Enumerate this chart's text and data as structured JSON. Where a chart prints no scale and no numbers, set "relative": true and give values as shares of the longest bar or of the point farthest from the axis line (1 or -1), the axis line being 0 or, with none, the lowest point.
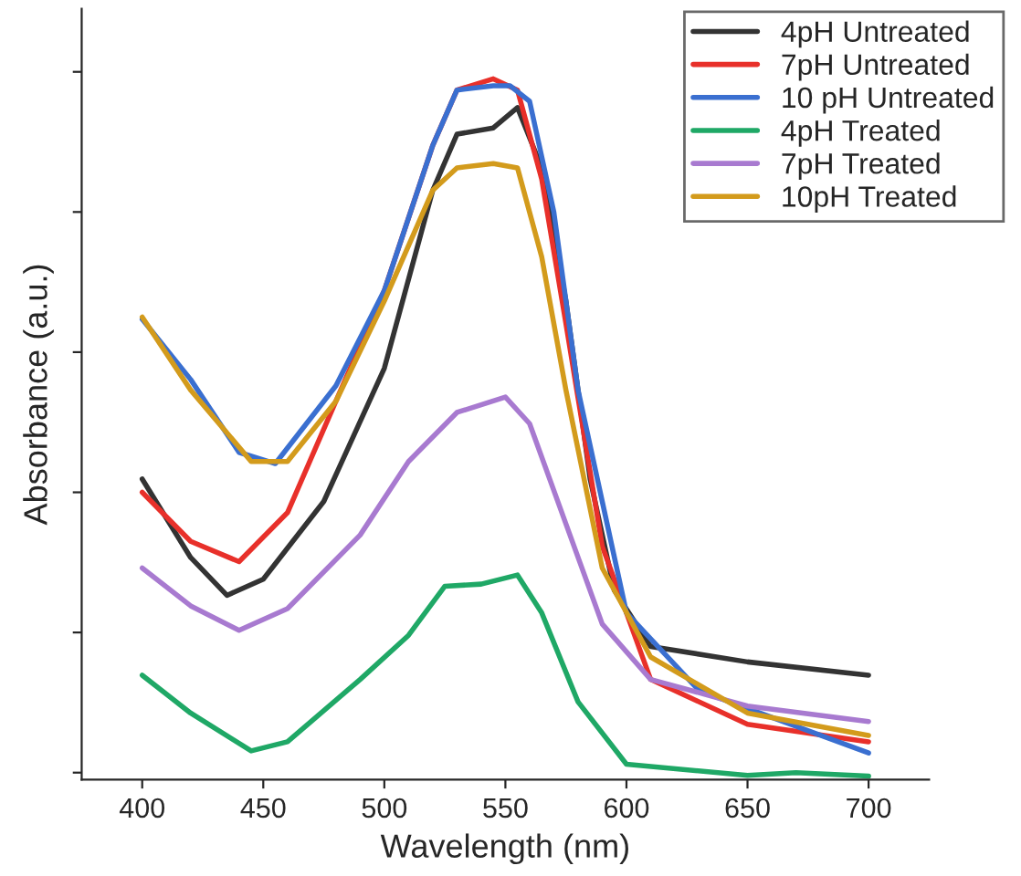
{
  "chart_data": {
    "type": "line",
    "relative": true,
    "xlabel": "Wavelength (nm)",
    "ylabel": "Absorbance (a.u.)",
    "xlim": [
      375,
      725
    ],
    "xticks": [
      400,
      450,
      500,
      550,
      600,
      650,
      700
    ],
    "grid": false,
    "legend": "top right",
    "tick_labels": "x",
    "line_style": "solid",
    "series": [
      {
        "name": "4pH Untreated",
        "color": "#333333",
        "x": [
          400,
          420,
          435,
          450,
          475,
          500,
          520,
          530,
          545,
          555,
          565,
          575,
          585,
          595,
          610,
          650,
          700
        ],
        "values": [
          0.429,
          0.317,
          0.263,
          0.286,
          0.397,
          0.587,
          0.841,
          0.921,
          0.93,
          0.959,
          0.873,
          0.683,
          0.429,
          0.27,
          0.19,
          0.168,
          0.149
        ]
      },
      {
        "name": "7pH Untreated",
        "color": "#e8302a",
        "x": [
          400,
          420,
          440,
          460,
          480,
          500,
          520,
          530,
          545,
          555,
          565,
          575,
          590,
          610,
          650,
          700
        ],
        "values": [
          0.41,
          0.34,
          0.311,
          0.381,
          0.54,
          0.698,
          0.905,
          0.984,
          1.0,
          0.984,
          0.857,
          0.651,
          0.333,
          0.143,
          0.079,
          0.054
        ]
      },
      {
        "name": "10 pH Untreated",
        "color": "#3a6fd0",
        "x": [
          400,
          420,
          440,
          455,
          480,
          500,
          520,
          530,
          545,
          552,
          560,
          570,
          580,
          600,
          630,
          700
        ],
        "values": [
          0.657,
          0.571,
          0.467,
          0.451,
          0.562,
          0.698,
          0.905,
          0.984,
          0.99,
          0.99,
          0.968,
          0.81,
          0.556,
          0.238,
          0.127,
          0.038
        ]
      },
      {
        "name": "4pH Treated",
        "color": "#1fa866",
        "x": [
          400,
          420,
          445,
          460,
          490,
          510,
          525,
          540,
          555,
          565,
          580,
          600,
          650,
          670,
          700
        ],
        "values": [
          0.149,
          0.095,
          0.041,
          0.054,
          0.143,
          0.206,
          0.276,
          0.279,
          0.292,
          0.238,
          0.111,
          0.022,
          0.006,
          0.01,
          0.005
        ]
      },
      {
        "name": "7pH Treated",
        "color": "#a87ad0",
        "x": [
          400,
          420,
          440,
          460,
          490,
          510,
          530,
          550,
          560,
          575,
          590,
          610,
          650,
          700
        ],
        "values": [
          0.302,
          0.248,
          0.213,
          0.244,
          0.349,
          0.454,
          0.524,
          0.546,
          0.508,
          0.365,
          0.222,
          0.143,
          0.105,
          0.083
        ]
      },
      {
        "name": "10pH Treated",
        "color": "#d39b1c",
        "x": [
          400,
          420,
          445,
          460,
          480,
          500,
          520,
          530,
          545,
          555,
          565,
          575,
          590,
          610,
          650,
          700
        ],
        "values": [
          0.66,
          0.556,
          0.454,
          0.454,
          0.54,
          0.683,
          0.841,
          0.873,
          0.879,
          0.873,
          0.746,
          0.556,
          0.302,
          0.175,
          0.095,
          0.063
        ]
      }
    ]
  }
}
